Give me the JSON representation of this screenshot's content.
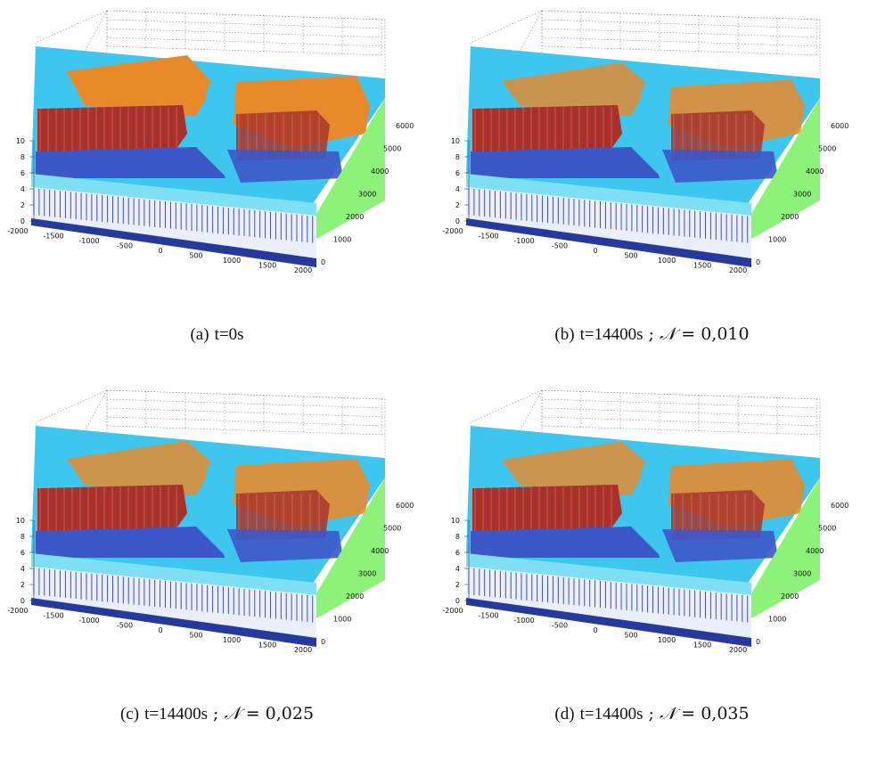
{
  "panels": [
    {
      "tag": "(a)",
      "time": "t=0s",
      "n_symbol": "",
      "n_value": "",
      "flood": 0.0
    },
    {
      "tag": "(b)",
      "time": "t=14400s",
      "n_symbol": "𝒩",
      "n_value": "0,010",
      "flood": 0.55
    },
    {
      "tag": "(c)",
      "time": "t=14400s",
      "n_symbol": "𝒩",
      "n_value": "0,025",
      "flood": 0.45
    },
    {
      "tag": "(d)",
      "time": "t=14400s",
      "n_symbol": "𝒩",
      "n_value": "0,035",
      "flood": 0.5
    }
  ],
  "axes": {
    "z_ticks": [
      "0",
      "2",
      "4",
      "6",
      "8",
      "10"
    ],
    "x_ticks": [
      "-2000",
      "-1500",
      "-1000",
      "-500",
      "0",
      "500",
      "1000",
      "1500",
      "2000"
    ],
    "y_ticks": [
      "0",
      "1000",
      "2000",
      "3000",
      "4000",
      "5000",
      "6000"
    ]
  },
  "colors": {
    "water": "#3fc6ee",
    "water_dark": "#1ea0d8",
    "terrain_orange": "#e88a2c",
    "terrain_red": "#a8322a",
    "bed_blue": "#263a9c",
    "side_green": "#8cf27a"
  }
}
